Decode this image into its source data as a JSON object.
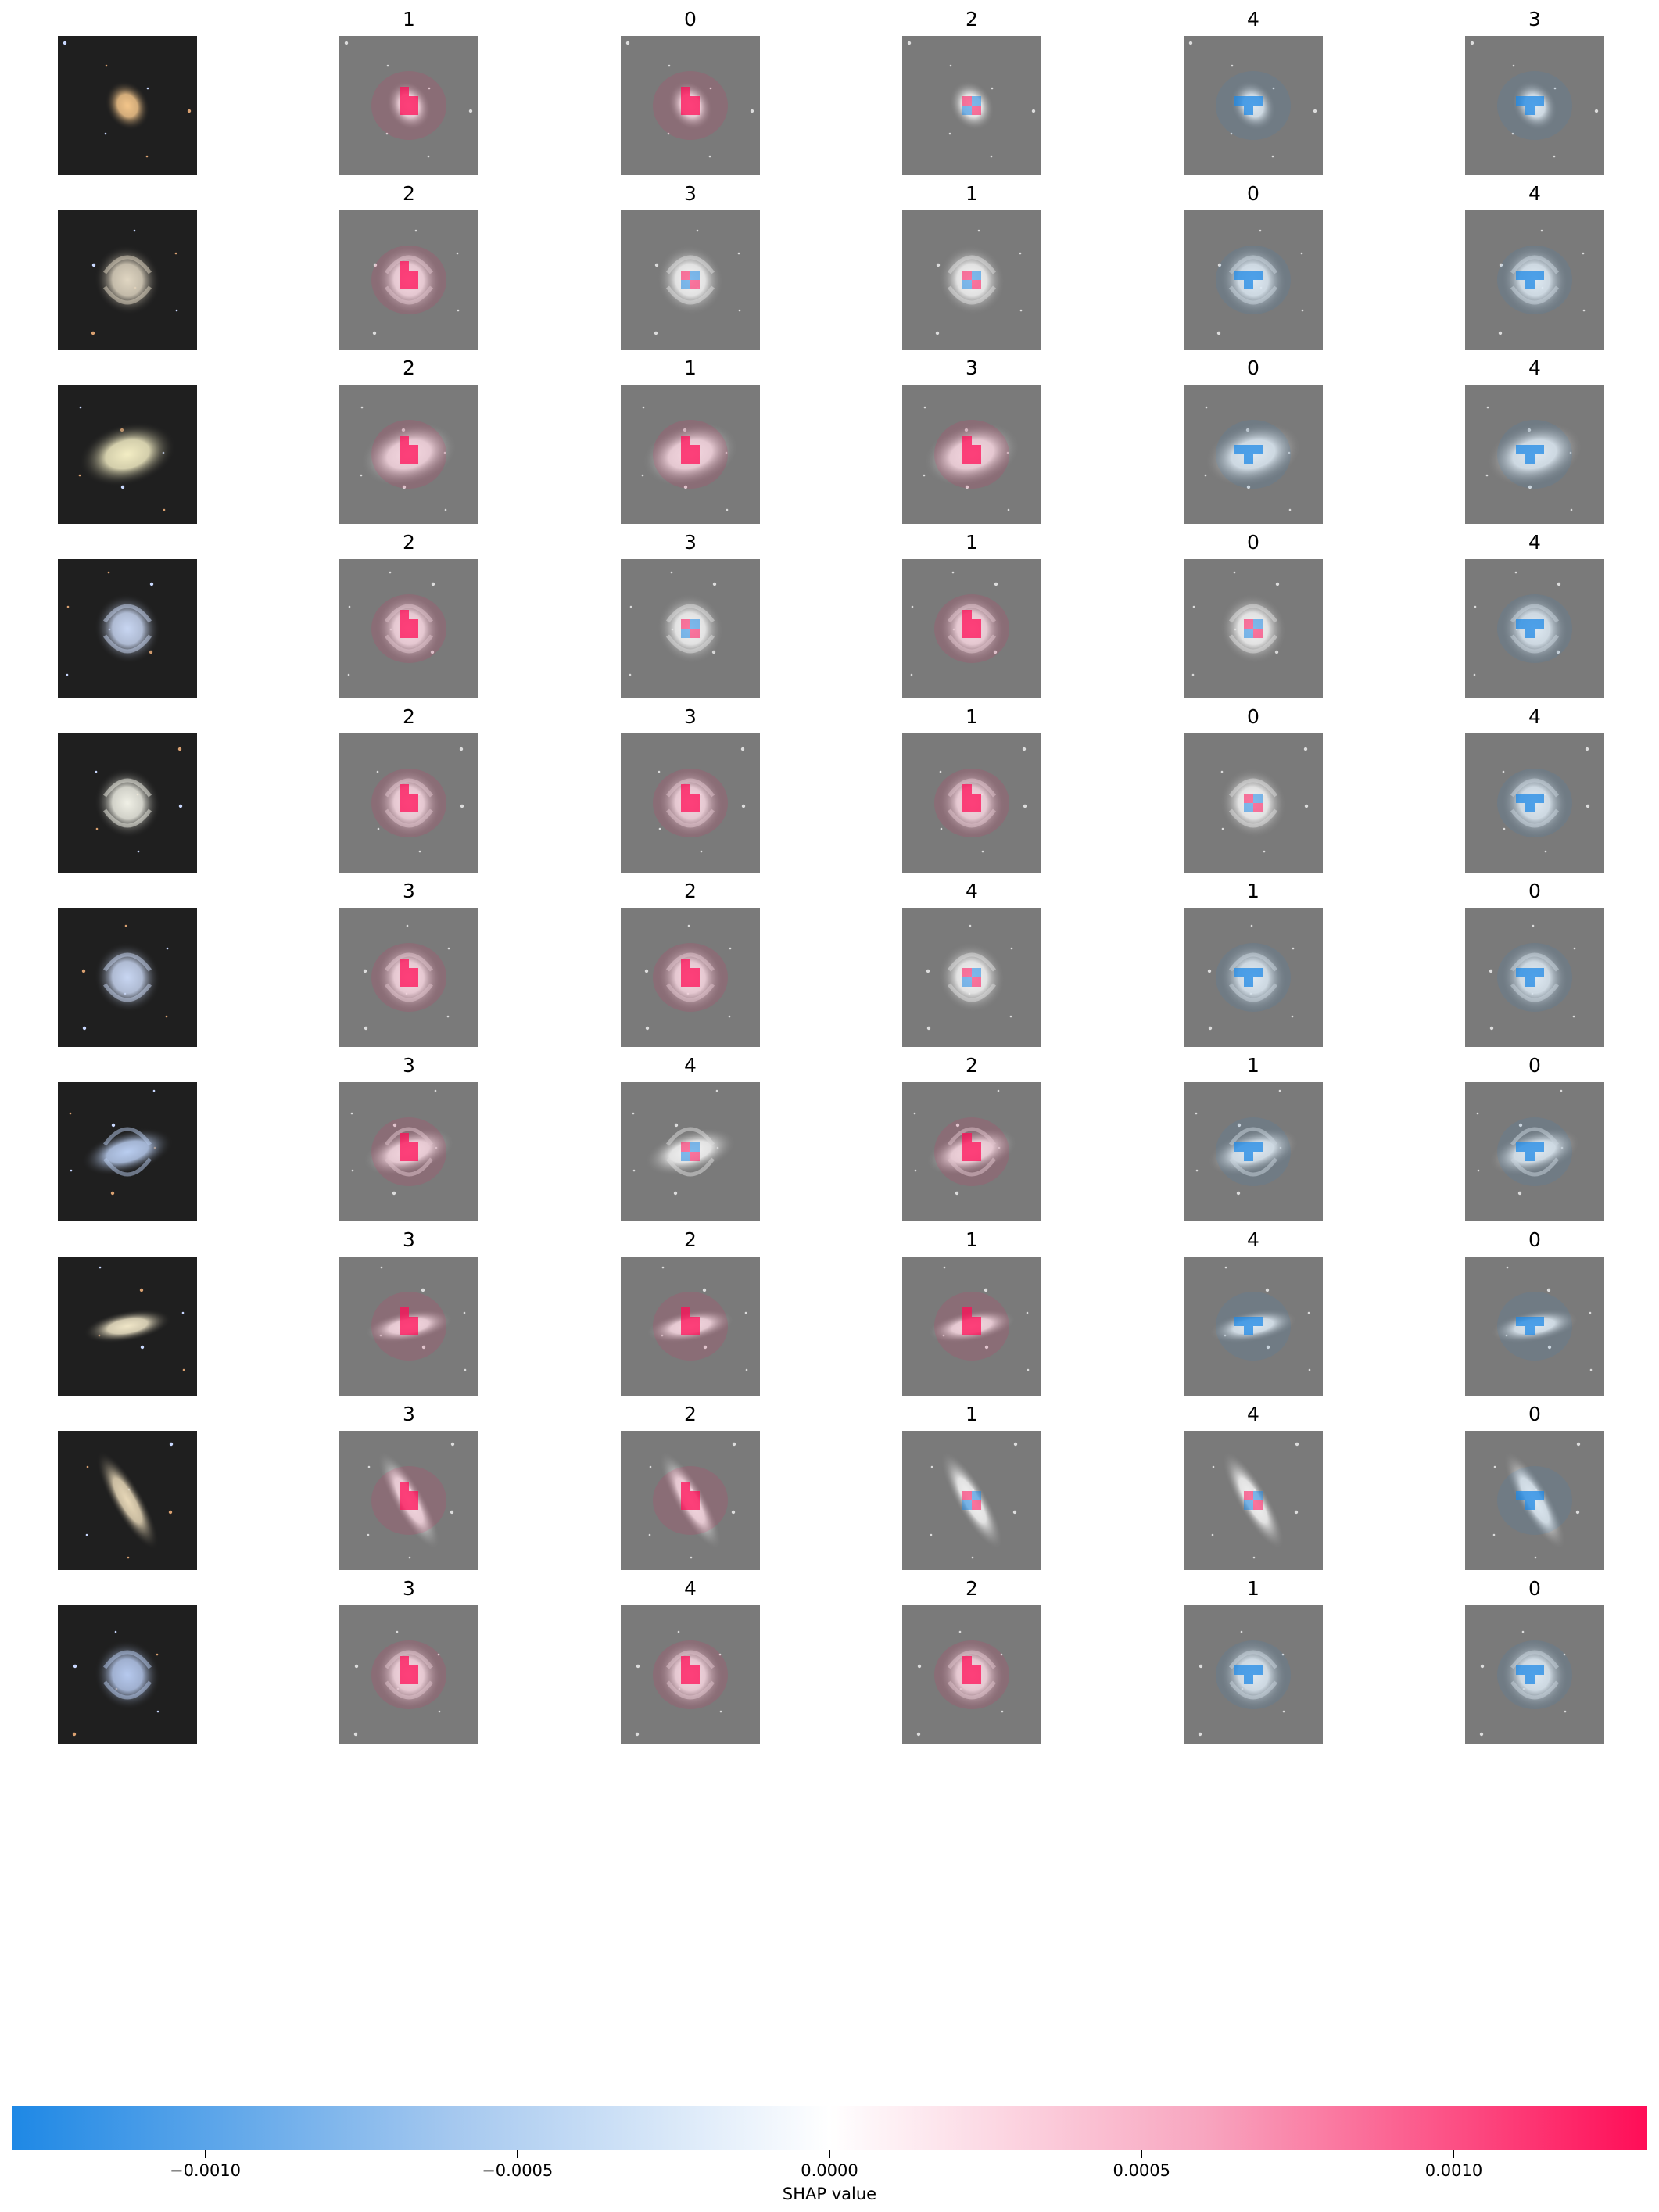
{
  "rows": [
    {
      "labels": [
        "1",
        "0",
        "2",
        "4",
        "3"
      ],
      "panel_tint": [
        "red",
        "red",
        "mixed",
        "blue",
        "blue"
      ],
      "original": {
        "shape": "round",
        "color": "#f3c58a",
        "arms": false
      }
    },
    {
      "labels": [
        "2",
        "3",
        "1",
        "0",
        "4"
      ],
      "panel_tint": [
        "red",
        "mixed",
        "mixed",
        "blue",
        "blue"
      ],
      "original": {
        "shape": "spiral",
        "color": "#e0d6c2",
        "arms": true
      }
    },
    {
      "labels": [
        "2",
        "1",
        "3",
        "0",
        "4"
      ],
      "panel_tint": [
        "red",
        "red",
        "red",
        "blue",
        "blue"
      ],
      "original": {
        "shape": "elliptical",
        "color": "#f3edc4",
        "arms": false
      }
    },
    {
      "labels": [
        "2",
        "3",
        "1",
        "0",
        "4"
      ],
      "panel_tint": [
        "red",
        "mixed",
        "red",
        "mixed",
        "blue"
      ],
      "original": {
        "shape": "spiral",
        "color": "#c8d6f2",
        "arms": true
      }
    },
    {
      "labels": [
        "2",
        "3",
        "1",
        "0",
        "4"
      ],
      "panel_tint": [
        "red",
        "red",
        "red",
        "mixed",
        "blue"
      ],
      "original": {
        "shape": "spiral",
        "color": "#f0f0e6",
        "arms": true
      }
    },
    {
      "labels": [
        "3",
        "2",
        "4",
        "1",
        "0"
      ],
      "panel_tint": [
        "red",
        "red",
        "mixed",
        "blue",
        "blue"
      ],
      "original": {
        "shape": "spiral",
        "color": "#c8d6f2",
        "arms": true
      }
    },
    {
      "labels": [
        "3",
        "4",
        "2",
        "1",
        "0"
      ],
      "panel_tint": [
        "red",
        "mixed",
        "red",
        "blue",
        "blue"
      ],
      "original": {
        "shape": "barred",
        "color": "#b9cdf0",
        "arms": true
      }
    },
    {
      "labels": [
        "3",
        "2",
        "1",
        "4",
        "0"
      ],
      "panel_tint": [
        "red",
        "red",
        "red",
        "blue",
        "blue"
      ],
      "original": {
        "shape": "edge",
        "color": "#f0e6c8",
        "arms": false
      }
    },
    {
      "labels": [
        "3",
        "2",
        "1",
        "4",
        "0"
      ],
      "panel_tint": [
        "red",
        "red",
        "mixed",
        "mixed",
        "blue"
      ],
      "original": {
        "shape": "tilted",
        "color": "#e8d8b8",
        "arms": false
      }
    },
    {
      "labels": [
        "3",
        "4",
        "2",
        "1",
        "0"
      ],
      "panel_tint": [
        "red",
        "red",
        "red",
        "blue",
        "blue"
      ],
      "original": {
        "shape": "spiral",
        "color": "#b6c9ee",
        "arms": true
      }
    }
  ],
  "colorbar": {
    "label": "SHAP value",
    "ticks": [
      "−0.0010",
      "−0.0005",
      "0.0000",
      "0.0005",
      "0.0010"
    ],
    "tick_values": [
      -0.001,
      -0.0005,
      0.0,
      0.0005,
      0.001
    ],
    "range": [
      -0.00131,
      0.00131
    ],
    "colors": {
      "negative": "#1e88e5",
      "zero": "#ffffff",
      "positive": "#ff0d57"
    }
  },
  "chart_data": {
    "type": "heatmap",
    "xlabel": "SHAP value",
    "colorbar_ticks": [
      -0.001,
      -0.0005,
      0.0,
      0.0005,
      0.001
    ],
    "colorbar_range": [
      -0.00131,
      0.00131
    ]
  }
}
